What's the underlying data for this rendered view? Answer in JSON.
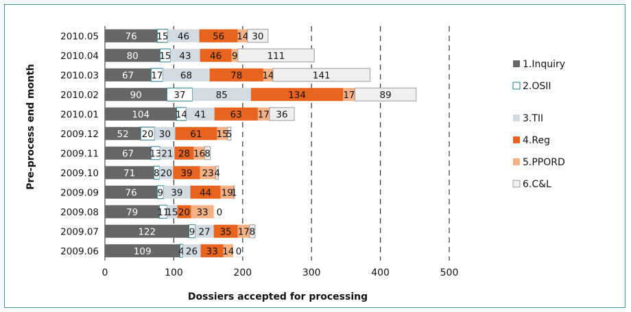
{
  "chart_data": {
    "type": "bar",
    "orientation": "horizontal",
    "stacked": true,
    "xlabel": "Dossiers accepted for processing",
    "ylabel": "Pre-process end month",
    "xlim": [
      0,
      500
    ],
    "xticks": [
      0,
      100,
      200,
      300,
      400,
      500
    ],
    "grid": "vertical dashed",
    "legend_position": "right",
    "categories": [
      "2010.05",
      "2010.04",
      "2010.03",
      "2010.02",
      "2010.01",
      "2009.12",
      "2009.11",
      "2009.10",
      "2009.09",
      "2009.08",
      "2009.07",
      "2009.06"
    ],
    "series": [
      {
        "name": "1.Inquiry",
        "color": "#666666",
        "label_color": "#ffffff",
        "stroke": "none",
        "values": [
          76,
          80,
          67,
          90,
          104,
          52,
          67,
          71,
          76,
          79,
          122,
          109
        ]
      },
      {
        "name": "2.OSII",
        "color": "#ffffff",
        "label_color": "#111111",
        "stroke": "#1e7a8c",
        "values": [
          15,
          15,
          17,
          37,
          14,
          20,
          13,
          8,
          9,
          11,
          9,
          4
        ]
      },
      {
        "name": "3.TII",
        "color": "#d3dbe2",
        "label_color": "#111111",
        "stroke": "none",
        "values": [
          46,
          43,
          68,
          85,
          41,
          30,
          21,
          20,
          39,
          15,
          27,
          26
        ]
      },
      {
        "name": "4.Reg",
        "color": "#e8641e",
        "label_color": "#111111",
        "stroke": "none",
        "values": [
          56,
          46,
          78,
          134,
          63,
          61,
          28,
          39,
          44,
          20,
          35,
          33
        ]
      },
      {
        "name": "5.PPORD",
        "color": "#f4b183",
        "label_color": "#111111",
        "stroke": "none",
        "values": [
          14,
          9,
          14,
          17,
          17,
          15,
          16,
          23,
          19,
          33,
          17,
          14
        ]
      },
      {
        "name": "6.C&L",
        "color": "#efefef",
        "label_color": "#111111",
        "stroke": "#9a9a9a",
        "values": [
          30,
          111,
          141,
          89,
          36,
          5,
          8,
          4,
          1,
          0,
          8,
          0
        ]
      }
    ]
  }
}
